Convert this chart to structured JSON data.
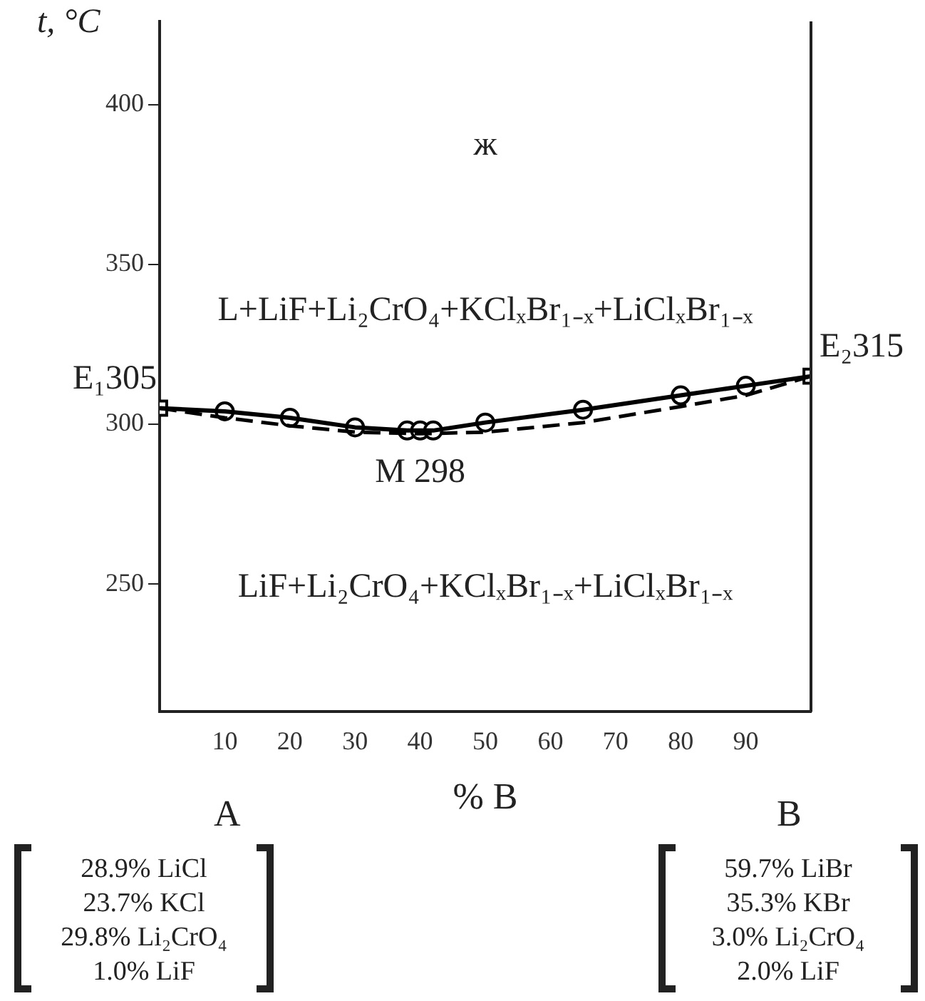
{
  "chart_data": {
    "type": "line",
    "xlabel": "% B",
    "ylabel": "t, °C",
    "xlim": [
      0,
      100
    ],
    "xticks": [
      10,
      20,
      30,
      40,
      50,
      60,
      70,
      80,
      90
    ],
    "ylim": [
      210,
      426
    ],
    "yticks": [
      250,
      300,
      350,
      400
    ],
    "grid": false,
    "legend": false,
    "series": [
      {
        "color": "#000000",
        "marker": "none",
        "line_style": "solid",
        "x": [
          0,
          10,
          20,
          30,
          38,
          40,
          42,
          50,
          65,
          80,
          90,
          100
        ],
        "values": [
          305,
          304,
          302,
          299,
          298,
          298,
          298,
          300.5,
          304.5,
          309,
          312,
          315
        ]
      },
      {
        "color": "#000000",
        "marker": "none",
        "line_style": "dashed",
        "x": [
          0,
          10,
          20,
          30,
          40,
          50,
          65,
          80,
          90,
          100
        ],
        "values": [
          305,
          302,
          299.5,
          297.5,
          297,
          297.5,
          300.5,
          305.5,
          309,
          315
        ]
      },
      {
        "type": "scatter",
        "color": "#000000",
        "marker": "circle",
        "x": [
          10,
          20,
          30,
          38,
          40,
          42,
          50,
          65,
          80,
          90
        ],
        "values": [
          304,
          302,
          299,
          298,
          298,
          298,
          300.5,
          304.5,
          309,
          312
        ]
      },
      {
        "type": "scatter",
        "color": "#000000",
        "marker": "square",
        "x": [
          0,
          100
        ],
        "values": [
          305,
          315
        ]
      }
    ],
    "annotations": [
      "ж",
      "L+LiF+Li₂CrO₄+KClₓBr₁₋ₓ+LiClₓBr₁₋ₓ",
      "LiF+Li₂CrO₄+KClₓBr₁₋ₓ+LiClₓBr₁₋ₓ",
      {
        "text": "E₁305",
        "x": 0,
        "y": 305
      },
      {
        "text": "E₂315",
        "x": 100,
        "y": 315
      },
      {
        "text": "M 298",
        "x": 40,
        "y": 298
      },
      "A",
      "B",
      "28.9% LiCl",
      "23.7% KCl",
      "29.8% Li₂CrO₄",
      "1.0% LiF",
      "59.7% LiBr",
      "35.3% KBr",
      "3.0% Li₂CrO₄",
      "2.0% LiF"
    ]
  }
}
